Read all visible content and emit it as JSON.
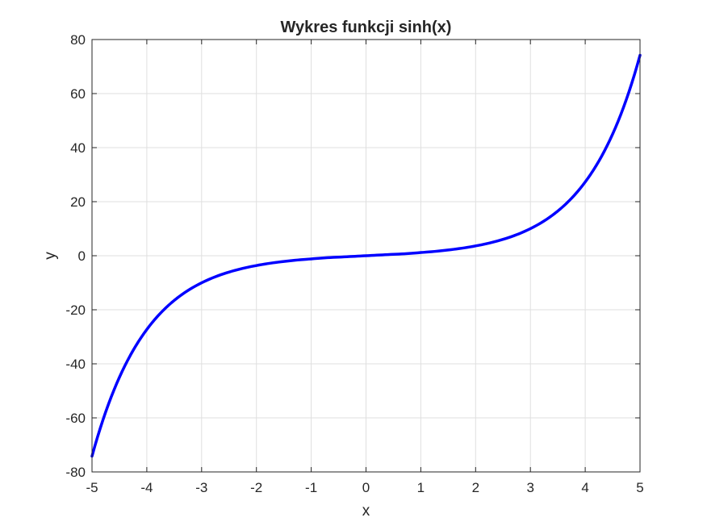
{
  "chart_data": {
    "type": "line",
    "title": "Wykres funkcji sinh(x)",
    "xlabel": "x",
    "ylabel": "y",
    "xlim": [
      -5,
      5
    ],
    "ylim": [
      -80,
      80
    ],
    "x_ticks": [
      -5,
      -4,
      -3,
      -2,
      -1,
      0,
      1,
      2,
      3,
      4,
      5
    ],
    "x_tick_labels": [
      "-5",
      "-4",
      "-3",
      "-2",
      "-1",
      "0",
      "1",
      "2",
      "3",
      "4",
      "5"
    ],
    "y_ticks": [
      -80,
      -60,
      -40,
      -20,
      0,
      20,
      40,
      60,
      80
    ],
    "y_tick_labels": [
      "-80",
      "-60",
      "-40",
      "-20",
      "0",
      "20",
      "40",
      "60",
      "80"
    ],
    "grid": true,
    "series": [
      {
        "color": "#0000ff",
        "x": [
          -5,
          -4.5,
          -4,
          -3.5,
          -3,
          -2.5,
          -2,
          -1.5,
          -1,
          -0.5,
          0,
          0.5,
          1,
          1.5,
          2,
          2.5,
          3,
          3.5,
          4,
          4.5,
          5
        ],
        "y": [
          -74.2,
          -45.0,
          -27.29,
          -16.54,
          -10.02,
          -6.05,
          -3.63,
          -2.13,
          -1.18,
          -0.52,
          0,
          0.52,
          1.18,
          2.13,
          3.63,
          6.05,
          10.02,
          16.54,
          27.29,
          45.0,
          74.2
        ]
      }
    ]
  }
}
